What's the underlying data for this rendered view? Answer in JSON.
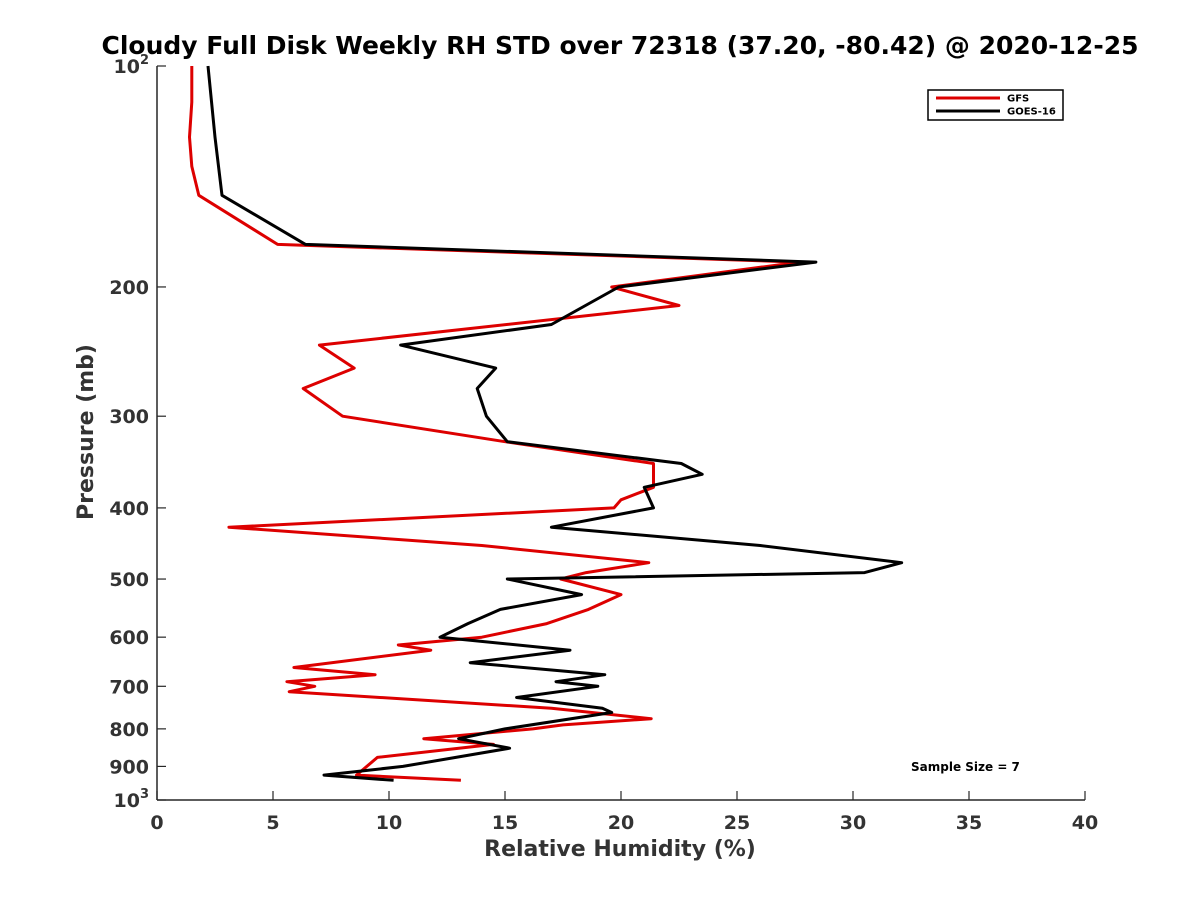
{
  "chart_data": {
    "type": "line",
    "title": "Cloudy Full Disk Weekly RH STD over 72318 (37.20, -80.42) @ 2020-12-25",
    "xlabel": "Relative Humidity (%)",
    "ylabel": "Pressure (mb)",
    "xlim": [
      0,
      40
    ],
    "ylim": [
      100,
      1000
    ],
    "yscale": "log",
    "y_reversed": true,
    "x_ticks": [
      0,
      5,
      10,
      15,
      20,
      25,
      30,
      35,
      40
    ],
    "x_tick_labels": [
      "0",
      "5",
      "10",
      "15",
      "20",
      "25",
      "30",
      "35",
      "40"
    ],
    "y_ticks": [
      100,
      200,
      300,
      400,
      500,
      600,
      700,
      800,
      900,
      1000
    ],
    "y_tick_labels": [
      "10^2",
      "200",
      "300",
      "400",
      "500",
      "600",
      "700",
      "800",
      "900",
      "10^3"
    ],
    "grid": false,
    "legend_position": "top-right",
    "annotation": "Sample Size = 7",
    "series": [
      {
        "name": "GFS",
        "color": "#dd0000",
        "points": [
          [
            1.5,
            100
          ],
          [
            1.5,
            112
          ],
          [
            1.4,
            125
          ],
          [
            1.5,
            137
          ],
          [
            1.8,
            150
          ],
          [
            5.2,
            175
          ],
          [
            27.7,
            185
          ],
          [
            19.6,
            200
          ],
          [
            22.5,
            212
          ],
          [
            7.0,
            240
          ],
          [
            8.5,
            258
          ],
          [
            6.3,
            275
          ],
          [
            8.0,
            300
          ],
          [
            15.0,
            325
          ],
          [
            21.4,
            348
          ],
          [
            21.4,
            375
          ],
          [
            20.0,
            390
          ],
          [
            19.7,
            400
          ],
          [
            3.1,
            425
          ],
          [
            14.0,
            450
          ],
          [
            21.2,
            475
          ],
          [
            18.5,
            490
          ],
          [
            17.4,
            500
          ],
          [
            20.0,
            525
          ],
          [
            18.6,
            550
          ],
          [
            16.8,
            575
          ],
          [
            14.0,
            600
          ],
          [
            10.4,
            615
          ],
          [
            11.8,
            625
          ],
          [
            5.9,
            660
          ],
          [
            9.4,
            675
          ],
          [
            5.6,
            690
          ],
          [
            6.8,
            700
          ],
          [
            5.7,
            712
          ],
          [
            17.0,
            750
          ],
          [
            21.3,
            775
          ],
          [
            17.5,
            790
          ],
          [
            16.2,
            800
          ],
          [
            11.5,
            825
          ],
          [
            14.5,
            840
          ],
          [
            9.5,
            875
          ],
          [
            8.6,
            925
          ],
          [
            13.1,
            940
          ]
        ]
      },
      {
        "name": "GOES-16",
        "color": "#000000",
        "points": [
          [
            2.2,
            100
          ],
          [
            2.5,
            125
          ],
          [
            2.8,
            150
          ],
          [
            6.4,
            175
          ],
          [
            28.4,
            185
          ],
          [
            19.9,
            200
          ],
          [
            17.0,
            225
          ],
          [
            10.5,
            240
          ],
          [
            14.6,
            258
          ],
          [
            13.8,
            275
          ],
          [
            14.2,
            300
          ],
          [
            15.1,
            325
          ],
          [
            22.6,
            348
          ],
          [
            23.5,
            360
          ],
          [
            21.0,
            375
          ],
          [
            21.4,
            400
          ],
          [
            17.0,
            425
          ],
          [
            26.0,
            450
          ],
          [
            32.1,
            475
          ],
          [
            30.5,
            490
          ],
          [
            15.1,
            500
          ],
          [
            18.3,
            525
          ],
          [
            14.8,
            550
          ],
          [
            13.4,
            575
          ],
          [
            12.2,
            600
          ],
          [
            17.8,
            625
          ],
          [
            13.5,
            650
          ],
          [
            19.3,
            675
          ],
          [
            17.2,
            690
          ],
          [
            19.0,
            700
          ],
          [
            15.5,
            725
          ],
          [
            19.2,
            750
          ],
          [
            19.6,
            760
          ],
          [
            15.0,
            800
          ],
          [
            13.0,
            825
          ],
          [
            15.2,
            850
          ],
          [
            10.6,
            900
          ],
          [
            7.2,
            925
          ],
          [
            10.2,
            940
          ]
        ]
      }
    ]
  }
}
